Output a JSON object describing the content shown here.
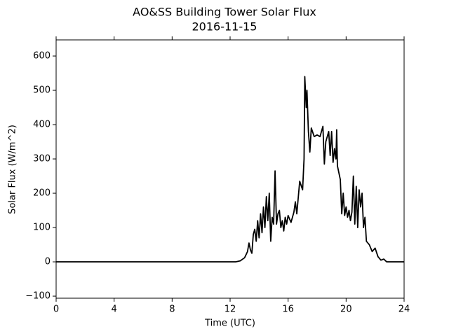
{
  "chart_data": {
    "type": "line",
    "title": "AO&SS Building Tower Solar Flux",
    "subtitle": "2016-11-15",
    "x_label": "Time (UTC)",
    "y_label": "Solar Flux (W/m^2)",
    "color": "#000000",
    "xlim": [
      0,
      24
    ],
    "xticks": [
      0,
      4,
      8,
      12,
      16,
      20,
      24
    ],
    "ylim": [
      -106,
      647
    ],
    "yticks": [
      {
        "value": -100,
        "label": "−100"
      },
      0,
      100,
      200,
      300,
      400,
      500,
      600
    ],
    "x": [
      0,
      12.4,
      12.7,
      13.0,
      13.2,
      13.3,
      13.4,
      13.5,
      13.6,
      13.7,
      13.8,
      13.9,
      14.0,
      14.1,
      14.2,
      14.3,
      14.4,
      14.5,
      14.6,
      14.7,
      14.8,
      14.9,
      15.0,
      15.1,
      15.2,
      15.3,
      15.4,
      15.5,
      15.6,
      15.7,
      15.8,
      15.9,
      16.0,
      16.2,
      16.4,
      16.5,
      16.6,
      16.8,
      17.0,
      17.1,
      17.15,
      17.25,
      17.3,
      17.4,
      17.5,
      17.6,
      17.8,
      18.0,
      18.2,
      18.4,
      18.5,
      18.6,
      18.8,
      18.9,
      19.0,
      19.1,
      19.2,
      19.3,
      19.35,
      19.4,
      19.6,
      19.7,
      19.8,
      19.9,
      20.0,
      20.1,
      20.2,
      20.3,
      20.4,
      20.5,
      20.6,
      20.7,
      20.8,
      20.9,
      21.0,
      21.1,
      21.2,
      21.3,
      21.4,
      21.6,
      21.8,
      22.0,
      22.2,
      22.4,
      22.6,
      22.8,
      24
    ],
    "values": [
      0,
      0,
      3,
      12,
      30,
      55,
      35,
      25,
      80,
      95,
      60,
      120,
      70,
      140,
      85,
      160,
      100,
      190,
      120,
      200,
      60,
      130,
      110,
      265,
      110,
      140,
      150,
      100,
      120,
      90,
      130,
      110,
      135,
      115,
      145,
      175,
      140,
      235,
      210,
      300,
      540,
      450,
      500,
      380,
      320,
      390,
      365,
      370,
      365,
      395,
      285,
      350,
      380,
      310,
      380,
      290,
      330,
      300,
      385,
      280,
      240,
      140,
      200,
      135,
      160,
      130,
      150,
      120,
      145,
      250,
      110,
      220,
      100,
      210,
      160,
      200,
      100,
      130,
      60,
      50,
      30,
      40,
      15,
      5,
      8,
      0,
      0
    ]
  }
}
